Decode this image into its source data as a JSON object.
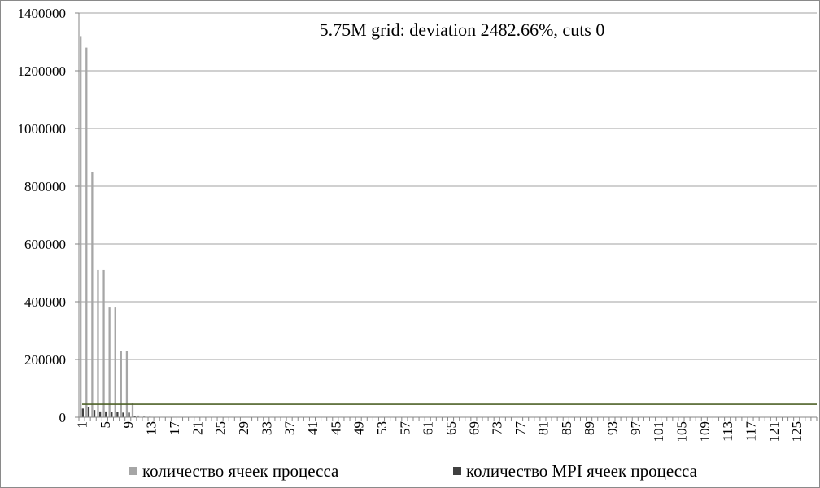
{
  "chart_data": {
    "type": "bar",
    "title": "5.75M grid: deviation 2482.66%, cuts 0",
    "xlabel": "",
    "ylabel": "",
    "ylim": [
      0,
      1400000
    ],
    "y_ticks": [
      0,
      200000,
      400000,
      600000,
      800000,
      1000000,
      1200000,
      1400000
    ],
    "y_tick_labels": [
      "0",
      "200000",
      "400000",
      "600000",
      "800000",
      "1000000",
      "1200000",
      "1400000"
    ],
    "x_categories_count": 128,
    "x_tick_labels": [
      "1",
      "5",
      "9",
      "13",
      "17",
      "21",
      "25",
      "29",
      "33",
      "37",
      "41",
      "45",
      "49",
      "53",
      "57",
      "61",
      "65",
      "69",
      "73",
      "77",
      "81",
      "85",
      "89",
      "93",
      "97",
      "101",
      "105",
      "109",
      "113",
      "117",
      "121",
      "125"
    ],
    "grid": true,
    "legend_position": "bottom",
    "reference_line": {
      "value": 45000,
      "color": "#4f6228"
    },
    "series": [
      {
        "name": "количество ячеек процесса",
        "color": "#a6a6a6",
        "values": [
          1320000,
          1280000,
          850000,
          510000,
          510000,
          380000,
          380000,
          230000,
          230000,
          50000,
          6000,
          3000,
          2000
        ]
      },
      {
        "name": "количество MPI ячеек процесса",
        "color": "#404040",
        "values": [
          30000,
          35000,
          25000,
          20000,
          20000,
          18000,
          18000,
          16000,
          16000,
          3000,
          500,
          300,
          200
        ]
      }
    ]
  },
  "colors": {
    "gridline": "#a0a0a0",
    "axis": "#868686",
    "frame": "#8a8a8a"
  }
}
